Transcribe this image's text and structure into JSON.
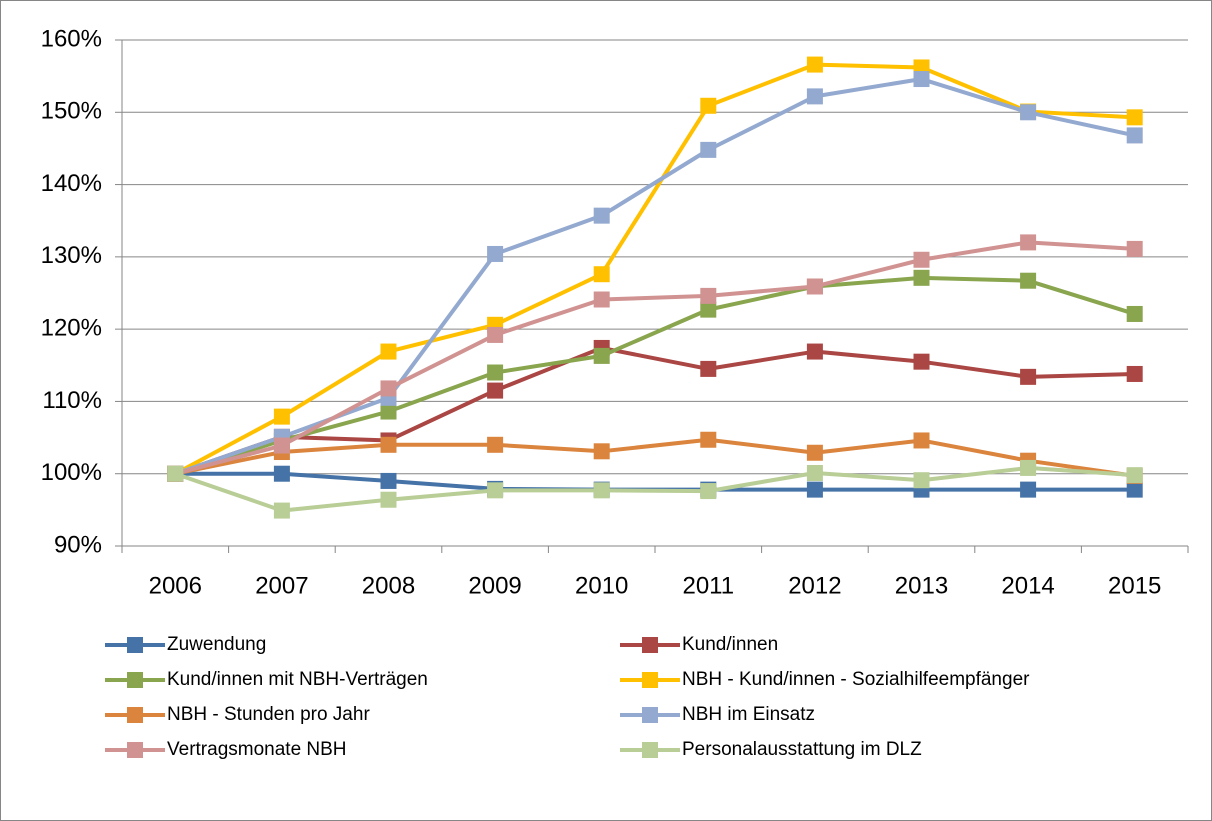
{
  "chart_data": {
    "type": "line",
    "categories": [
      "2006",
      "2007",
      "2008",
      "2009",
      "2010",
      "2011",
      "2012",
      "2013",
      "2014",
      "2015"
    ],
    "series": [
      {
        "name": "Zuwendung",
        "color": "#4572a7",
        "values": [
          100,
          100,
          99,
          97.9,
          97.8,
          97.8,
          97.8,
          97.8,
          97.8,
          97.8
        ]
      },
      {
        "name": "Kund/innen",
        "color": "#aa4643",
        "values": [
          100,
          105.1,
          104.6,
          111.5,
          117.4,
          114.5,
          116.9,
          115.5,
          113.4,
          113.8
        ]
      },
      {
        "name": "Kund/innen mit NBH-Verträgen",
        "color": "#89a54e",
        "values": [
          100,
          104.6,
          108.6,
          114,
          116.3,
          122.7,
          125.9,
          127.1,
          126.7,
          122.1
        ]
      },
      {
        "name": "NBH - Kund/innen - Sozialhilfeempfänger",
        "color": "#ffc000",
        "values": [
          100,
          107.9,
          116.9,
          120.6,
          127.6,
          150.9,
          156.6,
          156.2,
          150.1,
          149.3
        ]
      },
      {
        "name": "NBH - Stunden pro Jahr",
        "color": "#db843d",
        "values": [
          100,
          103,
          104,
          104,
          103.1,
          104.7,
          102.9,
          104.6,
          101.8,
          99.7
        ]
      },
      {
        "name": "NBH im Einsatz",
        "color": "#93a9cf",
        "values": [
          100,
          105.1,
          110.5,
          130.4,
          135.7,
          144.8,
          152.2,
          154.6,
          150,
          146.8
        ]
      },
      {
        "name": "Vertragsmonate NBH",
        "color": "#d19392",
        "values": [
          100,
          103.9,
          111.8,
          119.2,
          124.1,
          124.6,
          125.9,
          129.6,
          132,
          131.1
        ]
      },
      {
        "name": "Personalausstattung im DLZ",
        "color": "#b9cd96",
        "values": [
          100,
          94.9,
          96.4,
          97.7,
          97.7,
          97.6,
          100.1,
          99.1,
          100.8,
          99.8
        ]
      }
    ],
    "ylim": [
      90,
      160
    ],
    "yticks": [
      {
        "value": 90,
        "label": "90%"
      },
      {
        "value": 100,
        "label": "100%"
      },
      {
        "value": 110,
        "label": "110%"
      },
      {
        "value": 120,
        "label": "120%"
      },
      {
        "value": 130,
        "label": "130%"
      },
      {
        "value": 140,
        "label": "140%"
      },
      {
        "value": 150,
        "label": "150%"
      },
      {
        "value": 160,
        "label": "160%"
      }
    ],
    "grid": true,
    "legend": "bottom"
  }
}
